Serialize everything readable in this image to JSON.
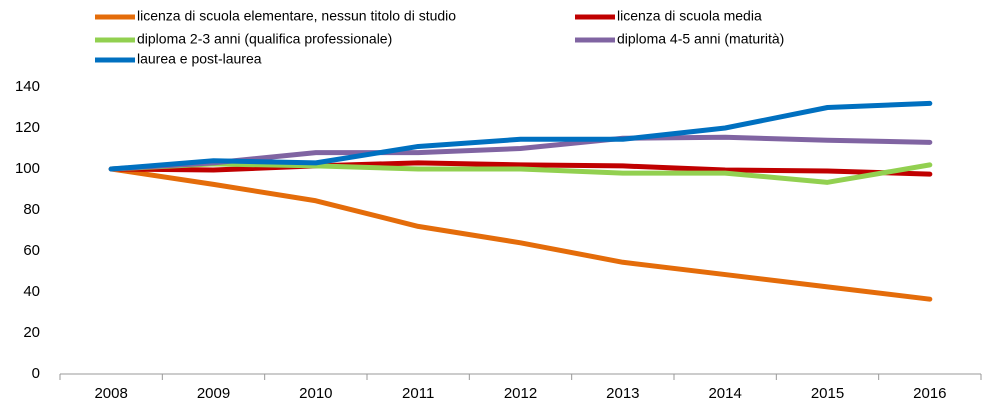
{
  "chart_data": {
    "type": "line",
    "categories": [
      "2008",
      "2009",
      "2010",
      "2011",
      "2012",
      "2013",
      "2014",
      "2015",
      "2016"
    ],
    "series": [
      {
        "name": "licenza di scuola elementare, nessun titolo di studio",
        "color": "#e46c0a",
        "values": [
          100,
          92.5,
          84.5,
          72,
          64,
          54.5,
          48.5,
          42.5,
          36.5
        ]
      },
      {
        "name": "licenza di scuola media",
        "color": "#c00000",
        "values": [
          100,
          99.5,
          101.5,
          103,
          102,
          101.5,
          99.5,
          99,
          97.5
        ]
      },
      {
        "name": "diploma 2-3 anni (qualifica professionale)",
        "color": "#92d050",
        "values": [
          100,
          102.5,
          101.5,
          100,
          100,
          98,
          98,
          93.5,
          102
        ]
      },
      {
        "name": "diploma 4-5 anni (maturità)",
        "color": "#8064a2",
        "values": [
          100,
          103,
          108,
          108,
          110,
          115,
          115.5,
          114,
          113
        ]
      },
      {
        "name": "laurea e post-laurea",
        "color": "#0070c0",
        "values": [
          100,
          104,
          103,
          111,
          114.5,
          114.5,
          120,
          130,
          132
        ]
      }
    ],
    "ylim": [
      0,
      140
    ],
    "yticks": [
      0,
      20,
      40,
      60,
      80,
      100,
      120,
      140
    ],
    "grid": false
  }
}
